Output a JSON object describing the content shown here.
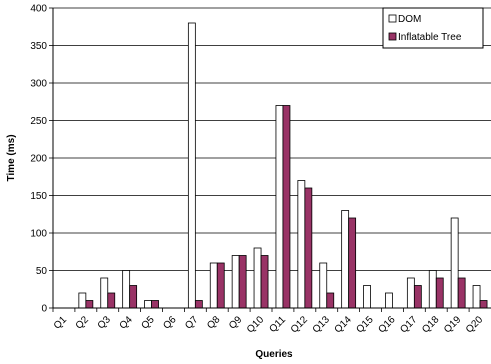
{
  "chart_data": {
    "type": "bar",
    "title": "",
    "xlabel": "Queries",
    "ylabel": "Time (ms)",
    "ylim": [
      0,
      400
    ],
    "yticks": [
      0,
      50,
      100,
      150,
      200,
      250,
      300,
      350,
      400
    ],
    "grid": "horizontal",
    "legend_position": "top-right",
    "categories": [
      "Q1",
      "Q2",
      "Q3",
      "Q4",
      "Q5",
      "Q6",
      "Q7",
      "Q8",
      "Q9",
      "Q10",
      "Q11",
      "Q12",
      "Q13",
      "Q14",
      "Q15",
      "Q16",
      "Q17",
      "Q18",
      "Q19",
      "Q20"
    ],
    "series": [
      {
        "name": "DOM",
        "color": "#ffffff",
        "values": [
          0,
          20,
          40,
          50,
          10,
          0,
          380,
          60,
          70,
          80,
          270,
          170,
          60,
          130,
          30,
          20,
          40,
          50,
          120,
          30
        ]
      },
      {
        "name": "Inflatable Tree",
        "color": "#993366",
        "values": [
          0,
          10,
          20,
          30,
          10,
          0,
          10,
          60,
          70,
          70,
          270,
          160,
          20,
          120,
          0,
          0,
          30,
          40,
          40,
          10
        ]
      }
    ]
  }
}
